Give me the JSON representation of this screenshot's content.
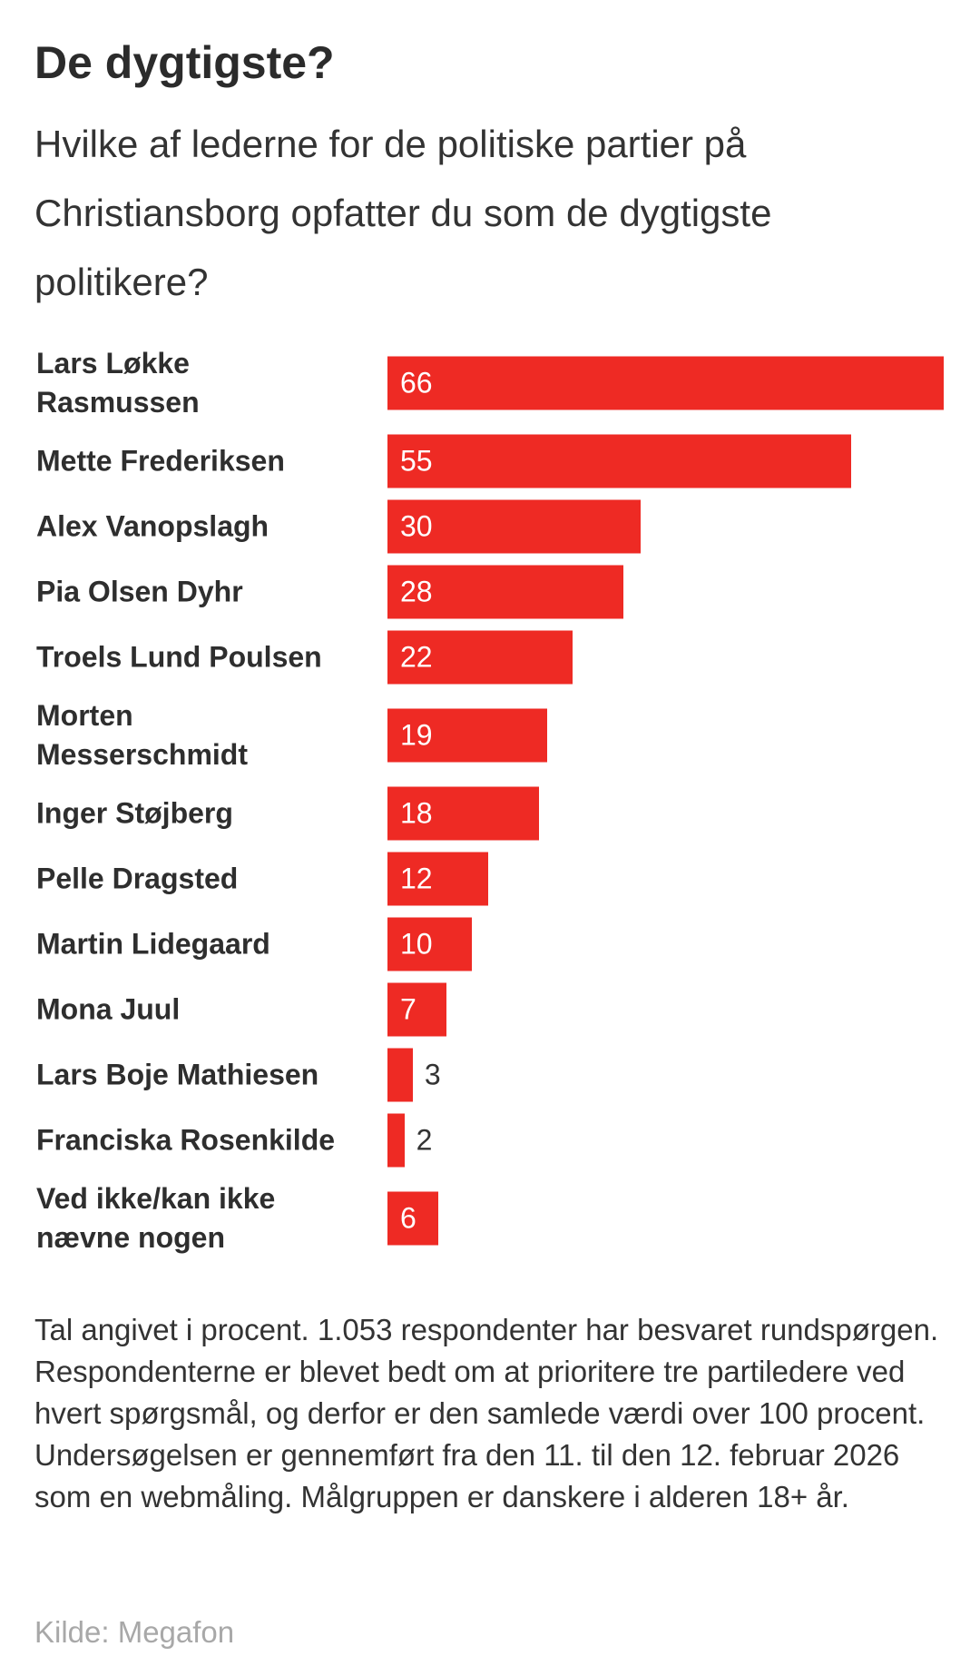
{
  "chart_data": {
    "type": "bar",
    "orientation": "horizontal",
    "title": "De dygtigste?",
    "subtitle": "Hvilke af lederne for de politiske partier på Christiansborg opfatter du som de dygtigste politikere?",
    "categories": [
      "Lars Løkke Rasmussen",
      "Mette Frederiksen",
      "Alex Vanopslagh",
      "Pia Olsen Dyhr",
      "Troels Lund Poulsen",
      "Morten Messerschmidt",
      "Inger Støjberg",
      "Pelle Dragsted",
      "Martin Lidegaard",
      "Mona Juul",
      "Lars Boje Mathiesen",
      "Franciska Rosenkilde",
      "Ved ikke/kan ikke nævne nogen"
    ],
    "values": [
      66,
      55,
      30,
      28,
      22,
      19,
      18,
      12,
      10,
      7,
      3,
      2,
      6
    ],
    "unit": "%",
    "xlabel": "",
    "ylabel": "",
    "xlim": [
      0,
      66
    ],
    "grid": false,
    "color": "#ee2a24"
  },
  "note": "Tal angivet i procent. 1.053 respondenter har besvaret rundspørgen. Respondenterne er blevet bedt om at prioritere tre partiledere ved hvert spørgsmål, og derfor er den samlede værdi over 100 procent. Undersøgelsen er gennemført fra den 11. til den 12. februar 2026 som en webmåling. Målgruppen er danskere i alderen 18+ år.",
  "source": "Kilde: Megafon"
}
